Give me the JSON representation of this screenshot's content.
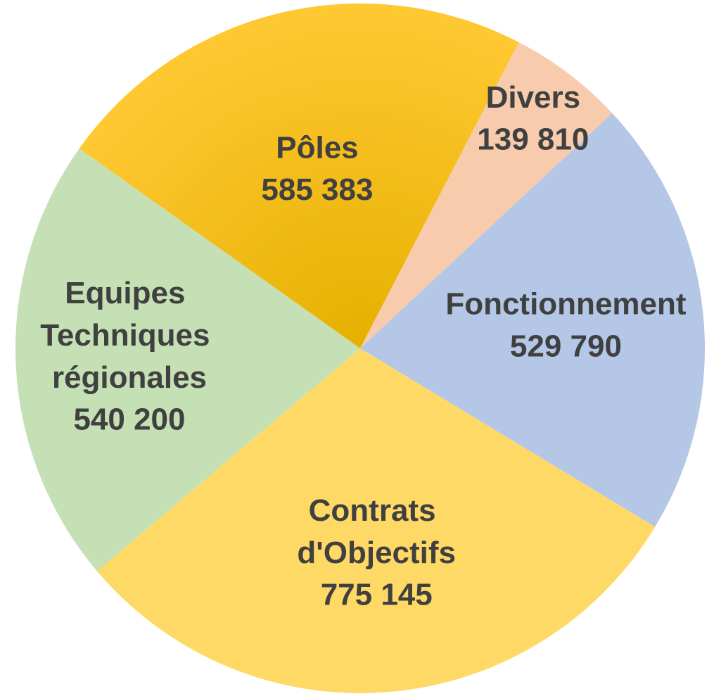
{
  "chart_data": {
    "type": "pie",
    "categories": [
      "Divers",
      "Fonctionnement",
      "Contrats d'Objectifs",
      "Equipes Techniques régionales",
      "Pôles"
    ],
    "values": [
      139810,
      529790,
      775145,
      540200,
      585383
    ],
    "value_labels": [
      "139 810",
      "529 790",
      "775 145",
      "540 200",
      "585 383"
    ],
    "colors": [
      "#f8cbad",
      "#b4c7e7",
      "#ffd966",
      "#c5e0b4",
      "#ffc000"
    ]
  }
}
